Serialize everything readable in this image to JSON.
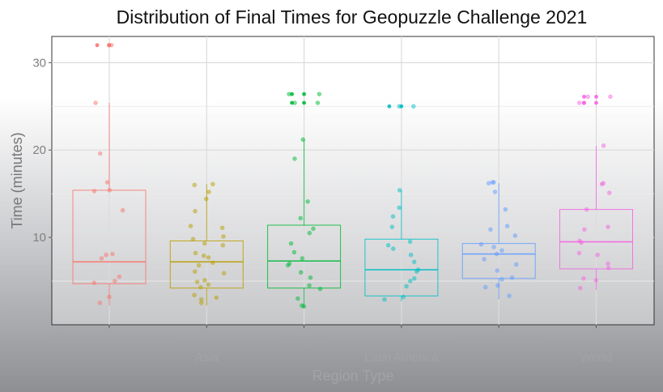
{
  "chart_data": {
    "type": "box",
    "title": "Distribution of Final Times for Geopuzzle Challenge 2021",
    "xlabel": "Region Type",
    "ylabel": "Time (minutes)",
    "ylim": [
      0,
      33
    ],
    "yticks": [
      10,
      20,
      30
    ],
    "grid": true,
    "legend": "none",
    "categories": [
      "Africa and Middle East",
      "Asia",
      "Europe",
      "Latin America",
      "North America",
      "World"
    ],
    "series": [
      {
        "category": "Africa and Middle East",
        "color": "#f8766d",
        "whisker_low": 2.2,
        "q1": 4.7,
        "median": 7.2,
        "q3": 15.4,
        "whisker_high": 25.4,
        "outliers": [
          32.0,
          32.0
        ],
        "points": [
          32.0,
          32.0,
          25.4,
          19.6,
          16.3,
          15.4,
          15.3,
          13.1,
          8.1,
          8.0,
          7.6,
          5.5,
          5.0,
          4.8,
          3.2,
          2.5
        ]
      },
      {
        "category": "Asia",
        "color": "#b79f00",
        "whisker_low": 2.2,
        "q1": 4.2,
        "median": 7.2,
        "q3": 9.6,
        "whisker_high": 16.1,
        "outliers": [],
        "points": [
          16.1,
          16.0,
          15.2,
          14.4,
          13.0,
          11.3,
          11.1,
          10.1,
          9.8,
          9.3,
          9.1,
          8.2,
          7.9,
          7.7,
          7.1,
          6.8,
          6.1,
          5.9,
          5.1,
          4.9,
          4.6,
          4.3,
          3.4,
          3.1,
          2.9,
          2.5
        ]
      },
      {
        "category": "Europe",
        "color": "#00ba38",
        "whisker_low": 2.0,
        "q1": 4.2,
        "median": 7.3,
        "q3": 11.4,
        "whisker_high": 21.2,
        "outliers": [
          26.4,
          26.4,
          25.4,
          25.4
        ],
        "points": [
          26.4,
          26.4,
          25.4,
          25.4,
          21.2,
          19.0,
          14.1,
          12.2,
          11.0,
          10.5,
          9.3,
          8.3,
          7.6,
          7.0,
          6.8,
          6.0,
          5.4,
          4.5,
          4.1,
          3.0,
          2.2,
          2.1
        ]
      },
      {
        "category": "Latin America",
        "color": "#00bfc4",
        "whisker_low": 2.7,
        "q1": 3.3,
        "median": 6.3,
        "q3": 9.8,
        "whisker_high": 15.4,
        "outliers": [
          25.0,
          25.0
        ],
        "points": [
          25.0,
          25.0,
          15.4,
          13.4,
          12.4,
          11.2,
          9.5,
          9.1,
          8.7,
          8.0,
          7.2,
          6.3,
          6.1,
          5.3,
          5.0,
          4.4,
          3.2,
          2.9
        ]
      },
      {
        "category": "North America",
        "color": "#619cff",
        "whisker_low": 2.9,
        "q1": 5.3,
        "median": 8.1,
        "q3": 9.3,
        "whisker_high": 16.2,
        "outliers": [],
        "points": [
          16.3,
          16.3,
          16.2,
          15.2,
          13.2,
          11.3,
          10.9,
          10.2,
          9.2,
          8.9,
          8.5,
          8.1,
          7.5,
          6.9,
          6.2,
          5.4,
          5.2,
          4.5,
          4.3,
          3.3
        ]
      },
      {
        "category": "World",
        "color": "#f564e3",
        "whisker_low": 4.0,
        "q1": 6.4,
        "median": 9.5,
        "q3": 13.2,
        "whisker_high": 20.5,
        "outliers": [
          26.1,
          26.1,
          25.4,
          25.4
        ],
        "points": [
          26.1,
          26.1,
          25.4,
          25.4,
          20.5,
          16.2,
          16.1,
          15.1,
          13.2,
          11.2,
          10.9,
          9.6,
          9.4,
          8.2,
          8.0,
          7.0,
          6.5,
          5.3,
          5.1,
          4.2
        ]
      }
    ]
  }
}
